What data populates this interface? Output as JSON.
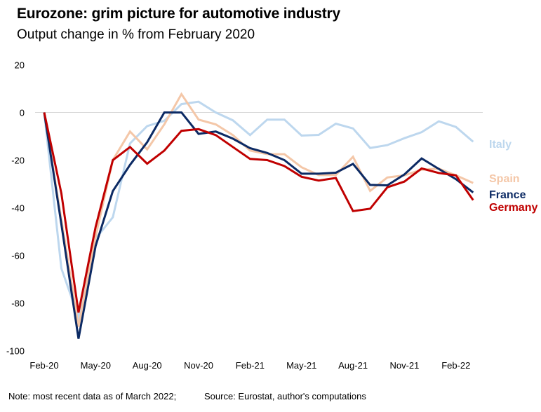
{
  "header": {
    "title": "Eurozone: grim picture for automotive industry",
    "subtitle": "Output change in % from February 2020"
  },
  "footer": {
    "note": "Note: most recent data as of March 2022;",
    "source": "Source: Eurostat, author's computations"
  },
  "chart_data": {
    "type": "line",
    "title": "Eurozone: grim picture for automotive industry",
    "subtitle": "Output change in % from February 2020",
    "xlabel": "",
    "ylabel": "",
    "ylim": [
      -100,
      20
    ],
    "yticks": [
      20,
      0,
      -20,
      -40,
      -60,
      -80,
      -100
    ],
    "ytick_labels": [
      "20",
      "0",
      "-20",
      "-40",
      "-60",
      "-80",
      "-100"
    ],
    "grid": "zero line only",
    "legend": "right, inline labels at line ends",
    "x": [
      "Feb-20",
      "Mar-20",
      "Apr-20",
      "May-20",
      "Jun-20",
      "Jul-20",
      "Aug-20",
      "Sep-20",
      "Oct-20",
      "Nov-20",
      "Dec-20",
      "Jan-21",
      "Feb-21",
      "Mar-21",
      "Apr-21",
      "May-21",
      "Jun-21",
      "Jul-21",
      "Aug-21",
      "Sep-21",
      "Oct-21",
      "Nov-21",
      "Dec-21",
      "Jan-22",
      "Feb-22",
      "Mar-22"
    ],
    "xtick_labels": [
      "Feb-20",
      "May-20",
      "Aug-20",
      "Nov-20",
      "Feb-21",
      "May-21",
      "Aug-21",
      "Nov-21",
      "Feb-22"
    ],
    "series": [
      {
        "name": "Italy",
        "color": "#bdd7ee",
        "values": [
          0,
          -65.5,
          -86,
          -53,
          -44,
          -13,
          -5.7,
          -3.5,
          3.5,
          4.5,
          0,
          -3.3,
          -9.5,
          -3,
          -3,
          -9.7,
          -9.4,
          -4.7,
          -6.7,
          -14.9,
          -13.7,
          -10.8,
          -8.3,
          -3.7,
          -6.1,
          -12.3
        ]
      },
      {
        "name": "Spain",
        "color": "#f4c7a8",
        "values": [
          0,
          -45,
          -90,
          -52,
          -20,
          -8,
          -15.5,
          -5,
          7.7,
          -3,
          -5,
          -9.5,
          -16,
          -17.5,
          -17.5,
          -23,
          -26.3,
          -26.3,
          -18.6,
          -32.9,
          -27.3,
          -26.4,
          -24,
          -23.6,
          -26.4,
          -29.6
        ]
      },
      {
        "name": "France",
        "color": "#0c2a64",
        "values": [
          0,
          -47,
          -95,
          -56,
          -33,
          -22,
          -12.5,
          0,
          0,
          -9,
          -8,
          -11,
          -15,
          -17,
          -20,
          -25.7,
          -25.7,
          -25.3,
          -21.6,
          -30.4,
          -30.6,
          -26,
          -19.3,
          -23.7,
          -28,
          -33.6
        ]
      },
      {
        "name": "Germany",
        "color": "#c00000",
        "values": [
          0,
          -34,
          -84,
          -48,
          -20,
          -14.5,
          -21.5,
          -16,
          -7.7,
          -7,
          -9.5,
          -14.5,
          -19.5,
          -20,
          -22.5,
          -27,
          -28.6,
          -27.5,
          -41.4,
          -40.4,
          -31.4,
          -29,
          -23.5,
          -25.4,
          -26.4,
          -36.8
        ]
      }
    ]
  }
}
